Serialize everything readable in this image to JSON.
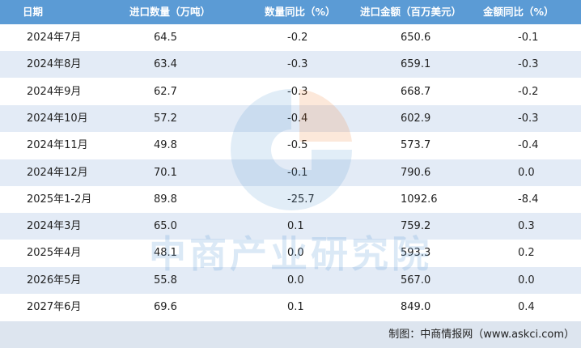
{
  "table": {
    "header": [
      "日期",
      "进口数量（万吨）",
      "数量同比（%）",
      "进口金额（百万美元）",
      "金额同比（%）"
    ],
    "rows": [
      [
        "2024年7月",
        "64.5",
        "-0.2",
        "650.6",
        "-0.1"
      ],
      [
        "2024年8月",
        "63.4",
        "-0.3",
        "659.1",
        "-0.3"
      ],
      [
        "2024年9月",
        "62.7",
        "-0.3",
        "668.7",
        "-0.2"
      ],
      [
        "2024年10月",
        "57.2",
        "-0.4",
        "602.9",
        "-0.3"
      ],
      [
        "2024年11月",
        "49.8",
        "-0.5",
        "573.7",
        "-0.4"
      ],
      [
        "2024年12月",
        "70.1",
        "-0.1",
        "790.6",
        "0.0"
      ],
      [
        "2025年1-2月",
        "89.8",
        "-25.7",
        "1092.6",
        "-8.4"
      ],
      [
        "2024年3月",
        "65.0",
        "0.1",
        "759.2",
        "0.3"
      ],
      [
        "2025年4月",
        "48.1",
        "0.0",
        "593.3",
        "0.2"
      ],
      [
        "2026年5月",
        "55.8",
        "0.0",
        "567.0",
        "0.0"
      ],
      [
        "2027年6月",
        "69.6",
        "0.1",
        "849.0",
        "0.4"
      ]
    ]
  },
  "watermark": "中商产业研究院",
  "source": "制图：中商情报网（www.askci.com）"
}
